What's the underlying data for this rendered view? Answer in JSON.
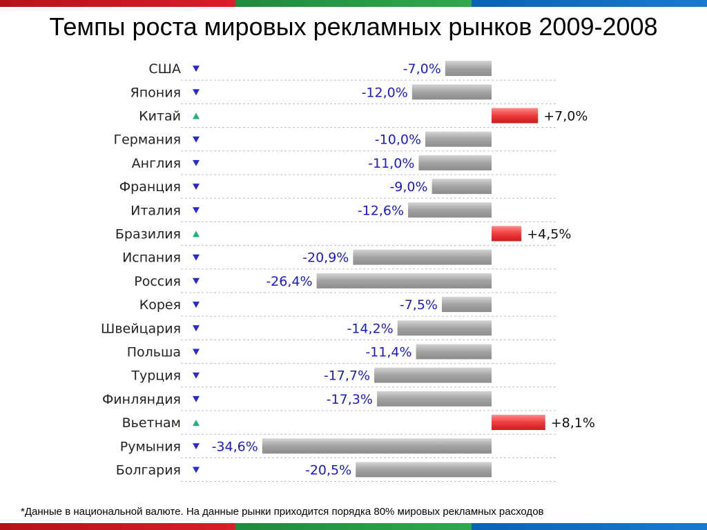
{
  "title": "Темпы роста мировых рекламных рынков 2009-2008",
  "footnote": "*Данные в национальной валюте. На данные рынки приходится порядка 80% мировых рекламных расходов",
  "colors": {
    "negative_bar": "#a6a6a6",
    "positive_bar": "#ee3b3b",
    "negative_text": "#1a1acc",
    "positive_text": "#111111",
    "down_marker": "#2a2acc",
    "up_marker": "#1fb27a",
    "separator": "#bbbbbb"
  },
  "chart_data": {
    "type": "bar",
    "orientation": "horizontal",
    "title": "Темпы роста мировых рекламных рынков 2009-2008",
    "categories": [
      "США",
      "Япония",
      "Китай",
      "Германия",
      "Англия",
      "Франция",
      "Италия",
      "Бразилия",
      "Испания",
      "Россия",
      "Корея",
      "Швейцария",
      "Польша",
      "Турция",
      "Финляндия",
      "Вьетнам",
      "Румыния",
      "Болгария"
    ],
    "values": [
      -7.0,
      -12.0,
      7.0,
      -10.0,
      -11.0,
      -9.0,
      -12.6,
      4.5,
      -20.9,
      -26.4,
      -7.5,
      -14.2,
      -11.4,
      -17.7,
      -17.3,
      8.1,
      -34.6,
      -20.5
    ],
    "value_labels": [
      "-7,0%",
      "-12,0%",
      "+7,0%",
      "-10,0%",
      "-11,0%",
      "-9,0%",
      "-12,6%",
      "+4,5%",
      "-20,9%",
      "-26,4%",
      "-7,5%",
      "-14,2%",
      "-11,4%",
      "-17,7%",
      "-17,3%",
      "+8,1%",
      "-34,6%",
      "-20,5%"
    ],
    "markers": [
      "down",
      "down",
      "up",
      "down",
      "down",
      "down",
      "down",
      "up",
      "down",
      "down",
      "down",
      "down",
      "down",
      "down",
      "down",
      "up",
      "down",
      "down"
    ],
    "unit": "%",
    "xlim": [
      -34.6,
      8.1
    ],
    "grid": false,
    "legend": "none"
  }
}
